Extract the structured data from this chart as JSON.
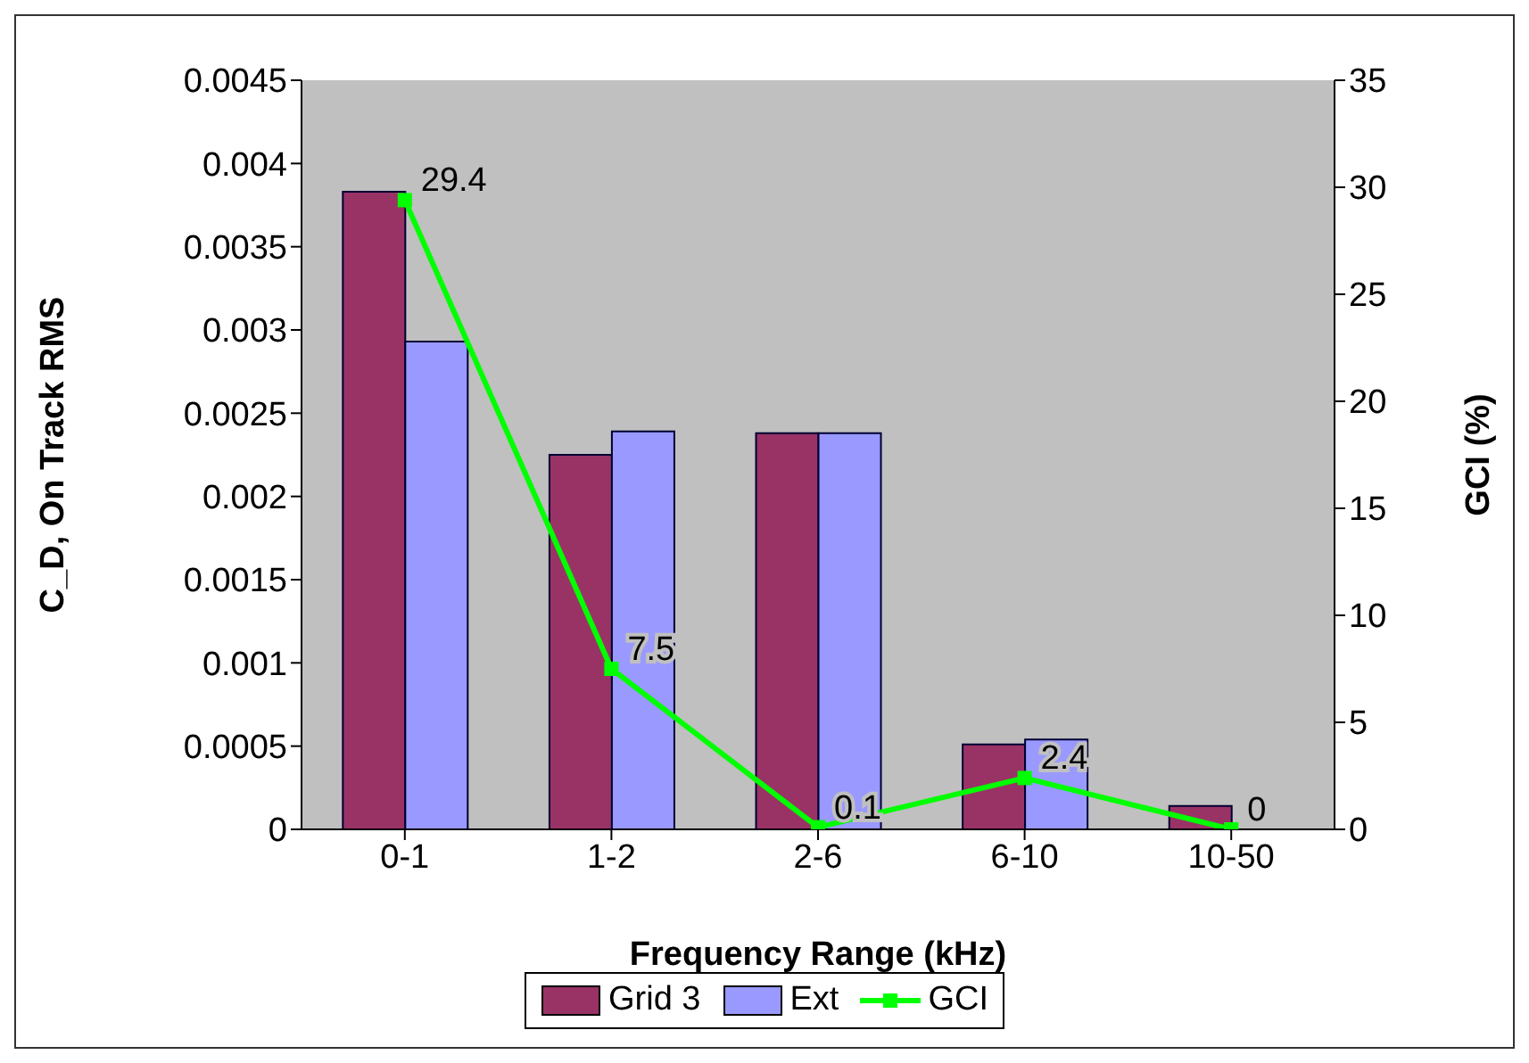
{
  "chart_data": {
    "type": "bar",
    "xlabel": "Frequency Range (kHz)",
    "ylabel": "C_D, On Track RMS",
    "y2label": "GCI (%)",
    "categories": [
      "0-1",
      "1-2",
      "2-6",
      "6-10",
      "10-50"
    ],
    "series": [
      {
        "name": "Grid 3",
        "color": "#993366",
        "values": [
          0.00383,
          0.00225,
          0.00238,
          0.00051,
          0.00014
        ]
      },
      {
        "name": "Ext",
        "color": "#9999ff",
        "values": [
          0.00293,
          0.00239,
          0.00238,
          0.00054,
          0
        ]
      },
      {
        "name": "GCI",
        "type": "line",
        "axis": "y2",
        "color": "#00ff00",
        "values": [
          29.4,
          7.5,
          0.1,
          2.4,
          0
        ],
        "marker": "square",
        "data_labels": true
      }
    ],
    "ylim": [
      0,
      0.0045
    ],
    "yticks": [
      0,
      0.0005,
      0.001,
      0.0015,
      0.002,
      0.0025,
      0.003,
      0.0035,
      0.004,
      0.0045
    ],
    "y2lim": [
      0,
      35
    ],
    "y2ticks": [
      0,
      5,
      10,
      15,
      20,
      25,
      30,
      35
    ],
    "grid": false,
    "legend": "bottom"
  }
}
